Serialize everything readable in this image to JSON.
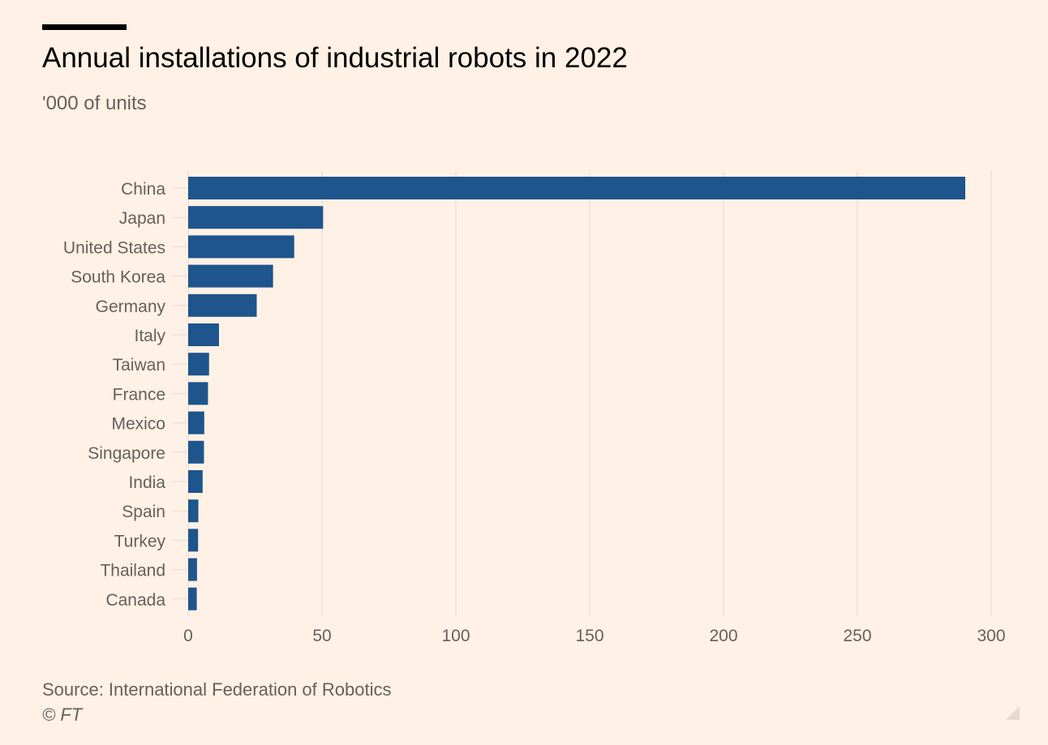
{
  "header": {
    "title": "Annual installations of industrial robots in 2022",
    "subtitle": "'000 of units"
  },
  "footer": {
    "source": "Source: International Federation of Robotics",
    "copyright": "© FT"
  },
  "colors": {
    "background": "#FFF1E5",
    "bar": "#1E558C",
    "grid": "#E6D9CE",
    "text": "#66605C"
  },
  "chart_data": {
    "type": "bar",
    "orientation": "horizontal",
    "title": "Annual installations of industrial robots in 2022",
    "subtitle": "'000 of units",
    "categories": [
      "China",
      "Japan",
      "United States",
      "South Korea",
      "Germany",
      "Italy",
      "Taiwan",
      "France",
      "Mexico",
      "Singapore",
      "India",
      "Spain",
      "Turkey",
      "Thailand",
      "Canada"
    ],
    "values": [
      290.3,
      50.4,
      39.6,
      31.7,
      25.6,
      11.5,
      7.8,
      7.4,
      6.0,
      5.9,
      5.4,
      3.8,
      3.7,
      3.3,
      3.2
    ],
    "xlim": [
      0,
      300
    ],
    "xticks": [
      0,
      50,
      100,
      150,
      200,
      250,
      300
    ],
    "grid": "vertical",
    "legend": "none"
  }
}
